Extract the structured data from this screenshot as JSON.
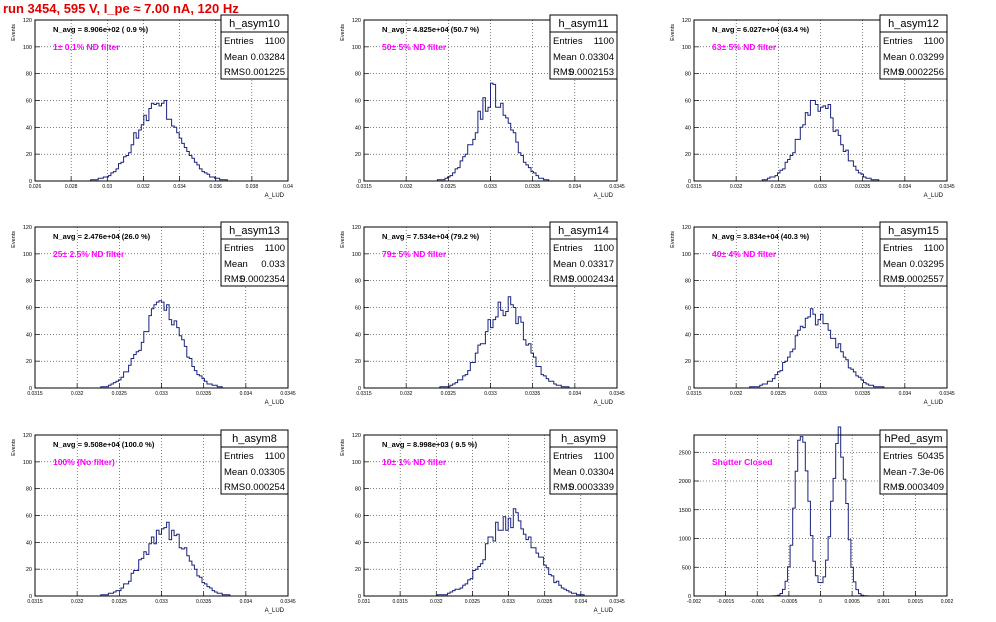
{
  "page": {
    "title": "run 3454,   595 V, I_pe ≈ 7.00 nA, 120 Hz"
  },
  "style": {
    "title_color": "#e00000",
    "line_color": "#1a237e",
    "annotation_color": "#ff00ff",
    "grid": "dotted"
  },
  "stat_labels": {
    "entries": "Entries",
    "mean": "Mean",
    "rms": "RMS"
  },
  "chart_data": [
    {
      "type": "histogram",
      "name": "h_asym10",
      "nav": "N_avg = 8.906e+02 ( 0.9 %)",
      "annotation": "1± 0.1% ND filter",
      "entries": "1100",
      "mean": "0.03284",
      "rms": "0.001225",
      "ylabel": "Events",
      "xlabel": "A_LUD",
      "xlim": [
        0.026,
        0.04
      ],
      "ylim": [
        0,
        120
      ],
      "xticks": [
        0.026,
        0.028,
        0.03,
        0.032,
        0.034,
        0.036,
        0.038,
        0.04
      ],
      "xticklabels": [
        "0.026",
        "0.028",
        "0.03",
        "0.032",
        "0.034",
        "0.036",
        "0.038",
        "0.04"
      ],
      "yticks": [
        0,
        20,
        40,
        60,
        80,
        100,
        120
      ],
      "mu": 0.03284,
      "sigma": 0.001225,
      "peak": 58
    },
    {
      "type": "histogram",
      "name": "h_asym11",
      "nav": "N_avg = 4.825e+04 (50.7 %)",
      "annotation": "50± 5% ND filter",
      "entries": "1100",
      "mean": "0.03304",
      "rms": "0.0002153",
      "ylabel": "Events",
      "xlabel": "A_LUD",
      "xlim": [
        0.0315,
        0.0345
      ],
      "ylim": [
        0,
        120
      ],
      "xticks": [
        0.0315,
        0.032,
        0.0325,
        0.033,
        0.0335,
        0.034,
        0.0345
      ],
      "xticklabels": [
        "0.0315",
        "0.032",
        "0.0325",
        "0.033",
        "0.0335",
        "0.034",
        "0.0345"
      ],
      "yticks": [
        0,
        20,
        40,
        60,
        80,
        100,
        120
      ],
      "mu": 0.03304,
      "sigma": 0.0002153,
      "peak": 67
    },
    {
      "type": "histogram",
      "name": "h_asym12",
      "nav": "N_avg = 6.027e+04 (63.4 %)",
      "annotation": "63± 5% ND filter",
      "entries": "1100",
      "mean": "0.03299",
      "rms": "0.0002256",
      "ylabel": "Events",
      "xlabel": "A_LUD",
      "xlim": [
        0.0315,
        0.0345
      ],
      "ylim": [
        0,
        120
      ],
      "xticks": [
        0.0315,
        0.032,
        0.0325,
        0.033,
        0.0335,
        0.034,
        0.0345
      ],
      "xticklabels": [
        "0.0315",
        "0.032",
        "0.0325",
        "0.033",
        "0.0335",
        "0.034",
        "0.0345"
      ],
      "yticks": [
        0,
        20,
        40,
        60,
        80,
        100,
        120
      ],
      "mu": 0.03299,
      "sigma": 0.0002256,
      "peak": 60
    },
    {
      "type": "histogram",
      "name": "h_asym13",
      "nav": "N_avg = 2.476e+04 (26.0 %)",
      "annotation": "25± 2.5% ND filter",
      "entries": "1100",
      "mean": "0.033",
      "rms": "0.0002354",
      "ylabel": "Events",
      "xlabel": "A_LUD",
      "xlim": [
        0.0315,
        0.0345
      ],
      "ylim": [
        0,
        120
      ],
      "xticks": [
        0.0315,
        0.032,
        0.0325,
        0.033,
        0.0335,
        0.034,
        0.0345
      ],
      "xticklabels": [
        "0.0315",
        "0.032",
        "0.0325",
        "0.033",
        "0.0335",
        "0.034",
        "0.0345"
      ],
      "yticks": [
        0,
        20,
        40,
        60,
        80,
        100,
        120
      ],
      "mu": 0.033,
      "sigma": 0.0002354,
      "peak": 61
    },
    {
      "type": "histogram",
      "name": "h_asym14",
      "nav": "N_avg = 7.534e+04 (79.2 %)",
      "annotation": "79± 5% ND filter",
      "entries": "1100",
      "mean": "0.03317",
      "rms": "0.0002434",
      "ylabel": "Events",
      "xlabel": "A_LUD",
      "xlim": [
        0.0315,
        0.0345
      ],
      "ylim": [
        0,
        120
      ],
      "xticks": [
        0.0315,
        0.032,
        0.0325,
        0.033,
        0.0335,
        0.034,
        0.0345
      ],
      "xticklabels": [
        "0.0315",
        "0.032",
        "0.0325",
        "0.033",
        "0.0335",
        "0.034",
        "0.0345"
      ],
      "yticks": [
        0,
        20,
        40,
        60,
        80,
        100,
        120
      ],
      "mu": 0.03317,
      "sigma": 0.0002434,
      "peak": 64
    },
    {
      "type": "histogram",
      "name": "h_asym15",
      "nav": "N_avg = 3.834e+04 (40.3 %)",
      "annotation": "40± 4% ND filter",
      "entries": "1100",
      "mean": "0.03295",
      "rms": "0.0002557",
      "ylabel": "Events",
      "xlabel": "A_LUD",
      "xlim": [
        0.0315,
        0.0345
      ],
      "ylim": [
        0,
        120
      ],
      "xticks": [
        0.0315,
        0.032,
        0.0325,
        0.033,
        0.0335,
        0.034,
        0.0345
      ],
      "xticklabels": [
        "0.0315",
        "0.032",
        "0.0325",
        "0.033",
        "0.0335",
        "0.034",
        "0.0345"
      ],
      "yticks": [
        0,
        20,
        40,
        60,
        80,
        100,
        120
      ],
      "mu": 0.03295,
      "sigma": 0.0002557,
      "peak": 55
    },
    {
      "type": "histogram",
      "name": "h_asym8",
      "nav": "N_avg = 9.508e+04 (100.0 %)",
      "annotation": "100% (No filter)",
      "entries": "1100",
      "mean": "0.03305",
      "rms": "0.000254",
      "ylabel": "Events",
      "xlabel": "A_LUD",
      "xlim": [
        0.0315,
        0.0345
      ],
      "ylim": [
        0,
        120
      ],
      "xticks": [
        0.0315,
        0.032,
        0.0325,
        0.033,
        0.0335,
        0.034,
        0.0345
      ],
      "xticklabels": [
        "0.0315",
        "0.032",
        "0.0325",
        "0.033",
        "0.0335",
        "0.034",
        "0.0345"
      ],
      "yticks": [
        0,
        20,
        40,
        60,
        80,
        100,
        120
      ],
      "mu": 0.03305,
      "sigma": 0.000254,
      "peak": 52
    },
    {
      "type": "histogram",
      "name": "h_asym9",
      "nav": "N_avg = 8.998e+03 ( 9.5 %)",
      "annotation": "10± 1% ND filter",
      "entries": "1100",
      "mean": "0.03304",
      "rms": "0.0003339",
      "ylabel": "Events",
      "xlabel": "A_LUD",
      "xlim": [
        0.031,
        0.0345
      ],
      "ylim": [
        0,
        120
      ],
      "xticks": [
        0.031,
        0.0315,
        0.032,
        0.0325,
        0.033,
        0.0335,
        0.034,
        0.0345
      ],
      "xticklabels": [
        "0.031",
        "0.0315",
        "0.032",
        "0.0325",
        "0.033",
        "0.0335",
        "0.034",
        "0.0345"
      ],
      "yticks": [
        0,
        20,
        40,
        60,
        80,
        100,
        120
      ],
      "mu": 0.03304,
      "sigma": 0.0003339,
      "peak": 61
    },
    {
      "type": "histogram",
      "name": "hPed_asym",
      "nav": "",
      "annotation": "Shutter Closed",
      "entries": "50435",
      "mean": "-7.3e-06",
      "rms": "0.0003409",
      "ylabel": "",
      "xlabel": "",
      "xlim": [
        -0.002,
        0.002
      ],
      "ylim": [
        0,
        2800
      ],
      "xticks": [
        -0.002,
        -0.0015,
        -0.001,
        -0.0005,
        0,
        0.0005,
        0.001,
        0.0015,
        0.002
      ],
      "xticklabels": [
        "-0.002",
        "-0.0015",
        "-0.001",
        "-0.0005",
        "0",
        "0.0005",
        "0.001",
        "0.0015",
        "0.002"
      ],
      "yticks": [
        0,
        500,
        1000,
        1500,
        2000,
        2500
      ],
      "bimodal": true,
      "peak_positions": [
        -0.0003,
        0.0003
      ],
      "peak": 2700,
      "valley": 1000
    }
  ]
}
